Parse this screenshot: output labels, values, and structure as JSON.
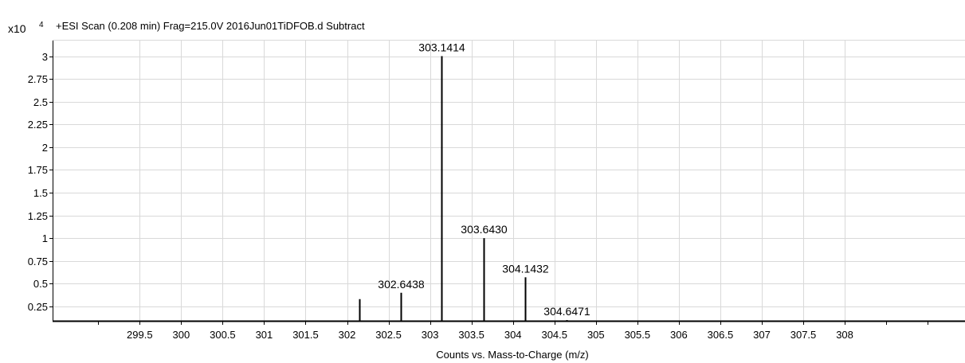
{
  "chart_data": {
    "type": "bar",
    "title": "+ESI Scan (0.208 min) Frag=215.0V 2016Jun01TiDFOB.d  Subtract",
    "y_multiplier_label": "x10",
    "y_multiplier_exponent": "4",
    "xlabel": "Counts vs. Mass-to-Charge (m/z)",
    "xlim": [
      298.45,
      309.45
    ],
    "ylim": [
      0,
      3.2
    ],
    "grid": true,
    "x_ticks": [
      "299.5",
      "300",
      "300.5",
      "301",
      "301.5",
      "302",
      "302.5",
      "303",
      "303.5",
      "304",
      "304.5",
      "305",
      "305.5",
      "306",
      "306.5",
      "307",
      "307.5",
      "308"
    ],
    "x_tick_values": [
      299.5,
      300,
      300.5,
      301,
      301.5,
      302,
      302.5,
      303,
      303.5,
      304,
      304.5,
      305,
      305.5,
      306,
      306.5,
      307,
      307.5,
      308
    ],
    "y_ticks": [
      "0.25",
      "0.5",
      "0.75",
      "1",
      "1.25",
      "1.5",
      "1.75",
      "2",
      "2.25",
      "2.5",
      "2.75",
      "3"
    ],
    "y_tick_values": [
      0.25,
      0.5,
      0.75,
      1,
      1.25,
      1.5,
      1.75,
      2,
      2.25,
      2.5,
      2.75,
      3
    ],
    "peaks": [
      {
        "mz": 302.15,
        "intensity": 0.33,
        "label": ""
      },
      {
        "mz": 302.6438,
        "intensity": 0.4,
        "label": "302.6438"
      },
      {
        "mz": 303.1414,
        "intensity": 3.0,
        "label": "303.1414"
      },
      {
        "mz": 303.643,
        "intensity": 1.0,
        "label": "303.6430"
      },
      {
        "mz": 304.1432,
        "intensity": 0.57,
        "label": "304.1432"
      },
      {
        "mz": 304.6471,
        "intensity": 0.1,
        "label": "304.6471"
      },
      {
        "mz": 305.08,
        "intensity": 0.08,
        "label": ""
      }
    ],
    "colors": {
      "line": "#000000",
      "grid": "#d9d9d9",
      "axis": "#000000"
    }
  }
}
